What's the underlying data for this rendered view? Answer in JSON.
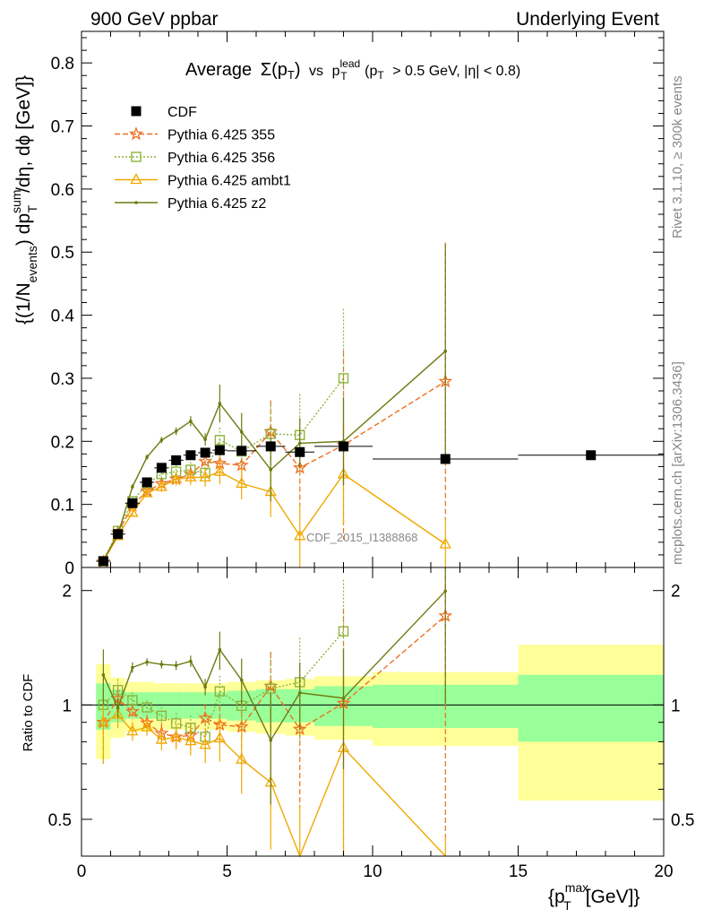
{
  "header": {
    "left": "900 GeV ppbar",
    "right": "Underlying Event"
  },
  "chart_data": {
    "type": "scatter",
    "title_parts": {
      "avg": "Average",
      "sigma": "Σ(p",
      "t": "T",
      "close": ")",
      "vs": "vs",
      "p": "p",
      "lead": "lead",
      "cond": "(p",
      "cond_rest": "> 0.5 GeV, |η| < 0.8)"
    },
    "ylabel_top_parts": {
      "a": "{(1/N",
      "events": "events",
      "b": ") dp",
      "sum": "sum",
      "T": "T",
      "c": "/dη, dϕ [GeV]}"
    },
    "ylabel_bottom": "Ratio to CDF",
    "xlabel_parts": {
      "a": "{p",
      "max": "max",
      "T": "T",
      "b": "[GeV]}"
    },
    "watermark": "CDF_2015_I1388868",
    "side_labels": {
      "rivet": "Rivet 3.1.10, ≥ 300k events",
      "mcplots": "mcplots.cern.ch [arXiv:1306.3436]"
    },
    "xlim": [
      0,
      20
    ],
    "ylim_top": [
      0,
      0.85
    ],
    "ylim_bottom": [
      0.4,
      2.3
    ],
    "x_ticks": [
      0,
      5,
      10,
      15,
      20
    ],
    "y_ticks_top": [
      0,
      0.1,
      0.2,
      0.3,
      0.4,
      0.5,
      0.6,
      0.7,
      0.8
    ],
    "y_ticks_bottom": [
      0.5,
      1,
      2
    ],
    "legend_position": "top-left",
    "colors": {
      "cdf": "#000000",
      "p355": "#ee6f1f",
      "p356": "#8db43c",
      "ambt1": "#f0a800",
      "z2": "#6e7a10",
      "band_inner": "#99ff99",
      "band_outer": "#ffff99"
    },
    "series": [
      {
        "name": "CDF",
        "x": [
          0.75,
          1.25,
          1.75,
          2.25,
          2.75,
          3.25,
          3.75,
          4.25,
          4.75,
          5.5,
          6.5,
          7.5,
          9.0,
          12.5,
          17.5
        ],
        "xerr": [
          0.25,
          0.25,
          0.25,
          0.25,
          0.25,
          0.25,
          0.25,
          0.25,
          0.25,
          0.5,
          0.5,
          0.5,
          1.0,
          2.5,
          2.5
        ],
        "y": [
          0.01,
          0.053,
          0.102,
          0.135,
          0.158,
          0.17,
          0.178,
          0.182,
          0.186,
          0.185,
          0.192,
          0.183,
          0.192,
          0.172,
          0.178
        ],
        "band_inner": [
          0.14,
          0.1,
          0.08,
          0.08,
          0.08,
          0.08,
          0.08,
          0.08,
          0.08,
          0.09,
          0.1,
          0.1,
          0.12,
          0.13,
          0.2
        ],
        "band_outer": [
          0.28,
          0.18,
          0.15,
          0.15,
          0.14,
          0.14,
          0.14,
          0.14,
          0.14,
          0.15,
          0.16,
          0.17,
          0.19,
          0.22,
          0.44
        ]
      },
      {
        "name": "Pythia 6.425 355",
        "x": [
          0.75,
          1.25,
          1.75,
          2.25,
          2.75,
          3.25,
          3.75,
          4.25,
          4.75,
          5.5,
          6.5,
          7.5,
          9.0,
          12.5
        ],
        "y": [
          0.009,
          0.055,
          0.098,
          0.121,
          0.133,
          0.14,
          0.148,
          0.168,
          0.165,
          0.162,
          0.215,
          0.158,
          0.194,
          0.295
        ],
        "yerr": [
          0.002,
          0.004,
          0.005,
          0.006,
          0.008,
          0.01,
          0.012,
          0.015,
          0.02,
          0.025,
          0.05,
          0.06,
          0.15,
          0.22
        ]
      },
      {
        "name": "Pythia 6.425 356",
        "x": [
          0.75,
          1.25,
          1.75,
          2.25,
          2.75,
          3.25,
          3.75,
          4.25,
          4.75,
          5.5,
          6.5,
          7.5,
          9.0
        ],
        "y": [
          0.01,
          0.058,
          0.105,
          0.133,
          0.148,
          0.152,
          0.155,
          0.15,
          0.202,
          0.184,
          0.212,
          0.21,
          0.3
        ],
        "yerr": [
          0.002,
          0.004,
          0.005,
          0.006,
          0.008,
          0.01,
          0.012,
          0.015,
          0.02,
          0.03,
          0.05,
          0.065,
          0.11
        ]
      },
      {
        "name": "Pythia 6.425 ambt1",
        "x": [
          0.75,
          1.25,
          1.75,
          2.25,
          2.75,
          3.25,
          3.75,
          4.25,
          4.75,
          5.5,
          6.5,
          7.5,
          9.0,
          12.5
        ],
        "y": [
          0.009,
          0.05,
          0.087,
          0.118,
          0.128,
          0.14,
          0.143,
          0.143,
          0.152,
          0.133,
          0.12,
          0.05,
          0.148,
          0.037
        ],
        "yerr": [
          0.002,
          0.004,
          0.005,
          0.006,
          0.008,
          0.01,
          0.012,
          0.015,
          0.02,
          0.025,
          0.04,
          0.05,
          0.08,
          0.04
        ]
      },
      {
        "name": "Pythia 6.425 z2",
        "x": [
          0.75,
          1.25,
          1.75,
          2.25,
          2.75,
          3.25,
          3.75,
          4.25,
          4.75,
          5.5,
          6.5,
          7.5,
          9.0,
          12.5
        ],
        "y": [
          0.012,
          0.052,
          0.128,
          0.175,
          0.202,
          0.216,
          0.232,
          0.203,
          0.26,
          0.215,
          0.155,
          0.197,
          0.2,
          0.343
        ],
        "yerr": [
          0.002,
          0.003,
          0.004,
          0.004,
          0.005,
          0.006,
          0.008,
          0.01,
          0.03,
          0.03,
          0.05,
          0.04,
          0.07,
          0.17
        ]
      }
    ]
  }
}
